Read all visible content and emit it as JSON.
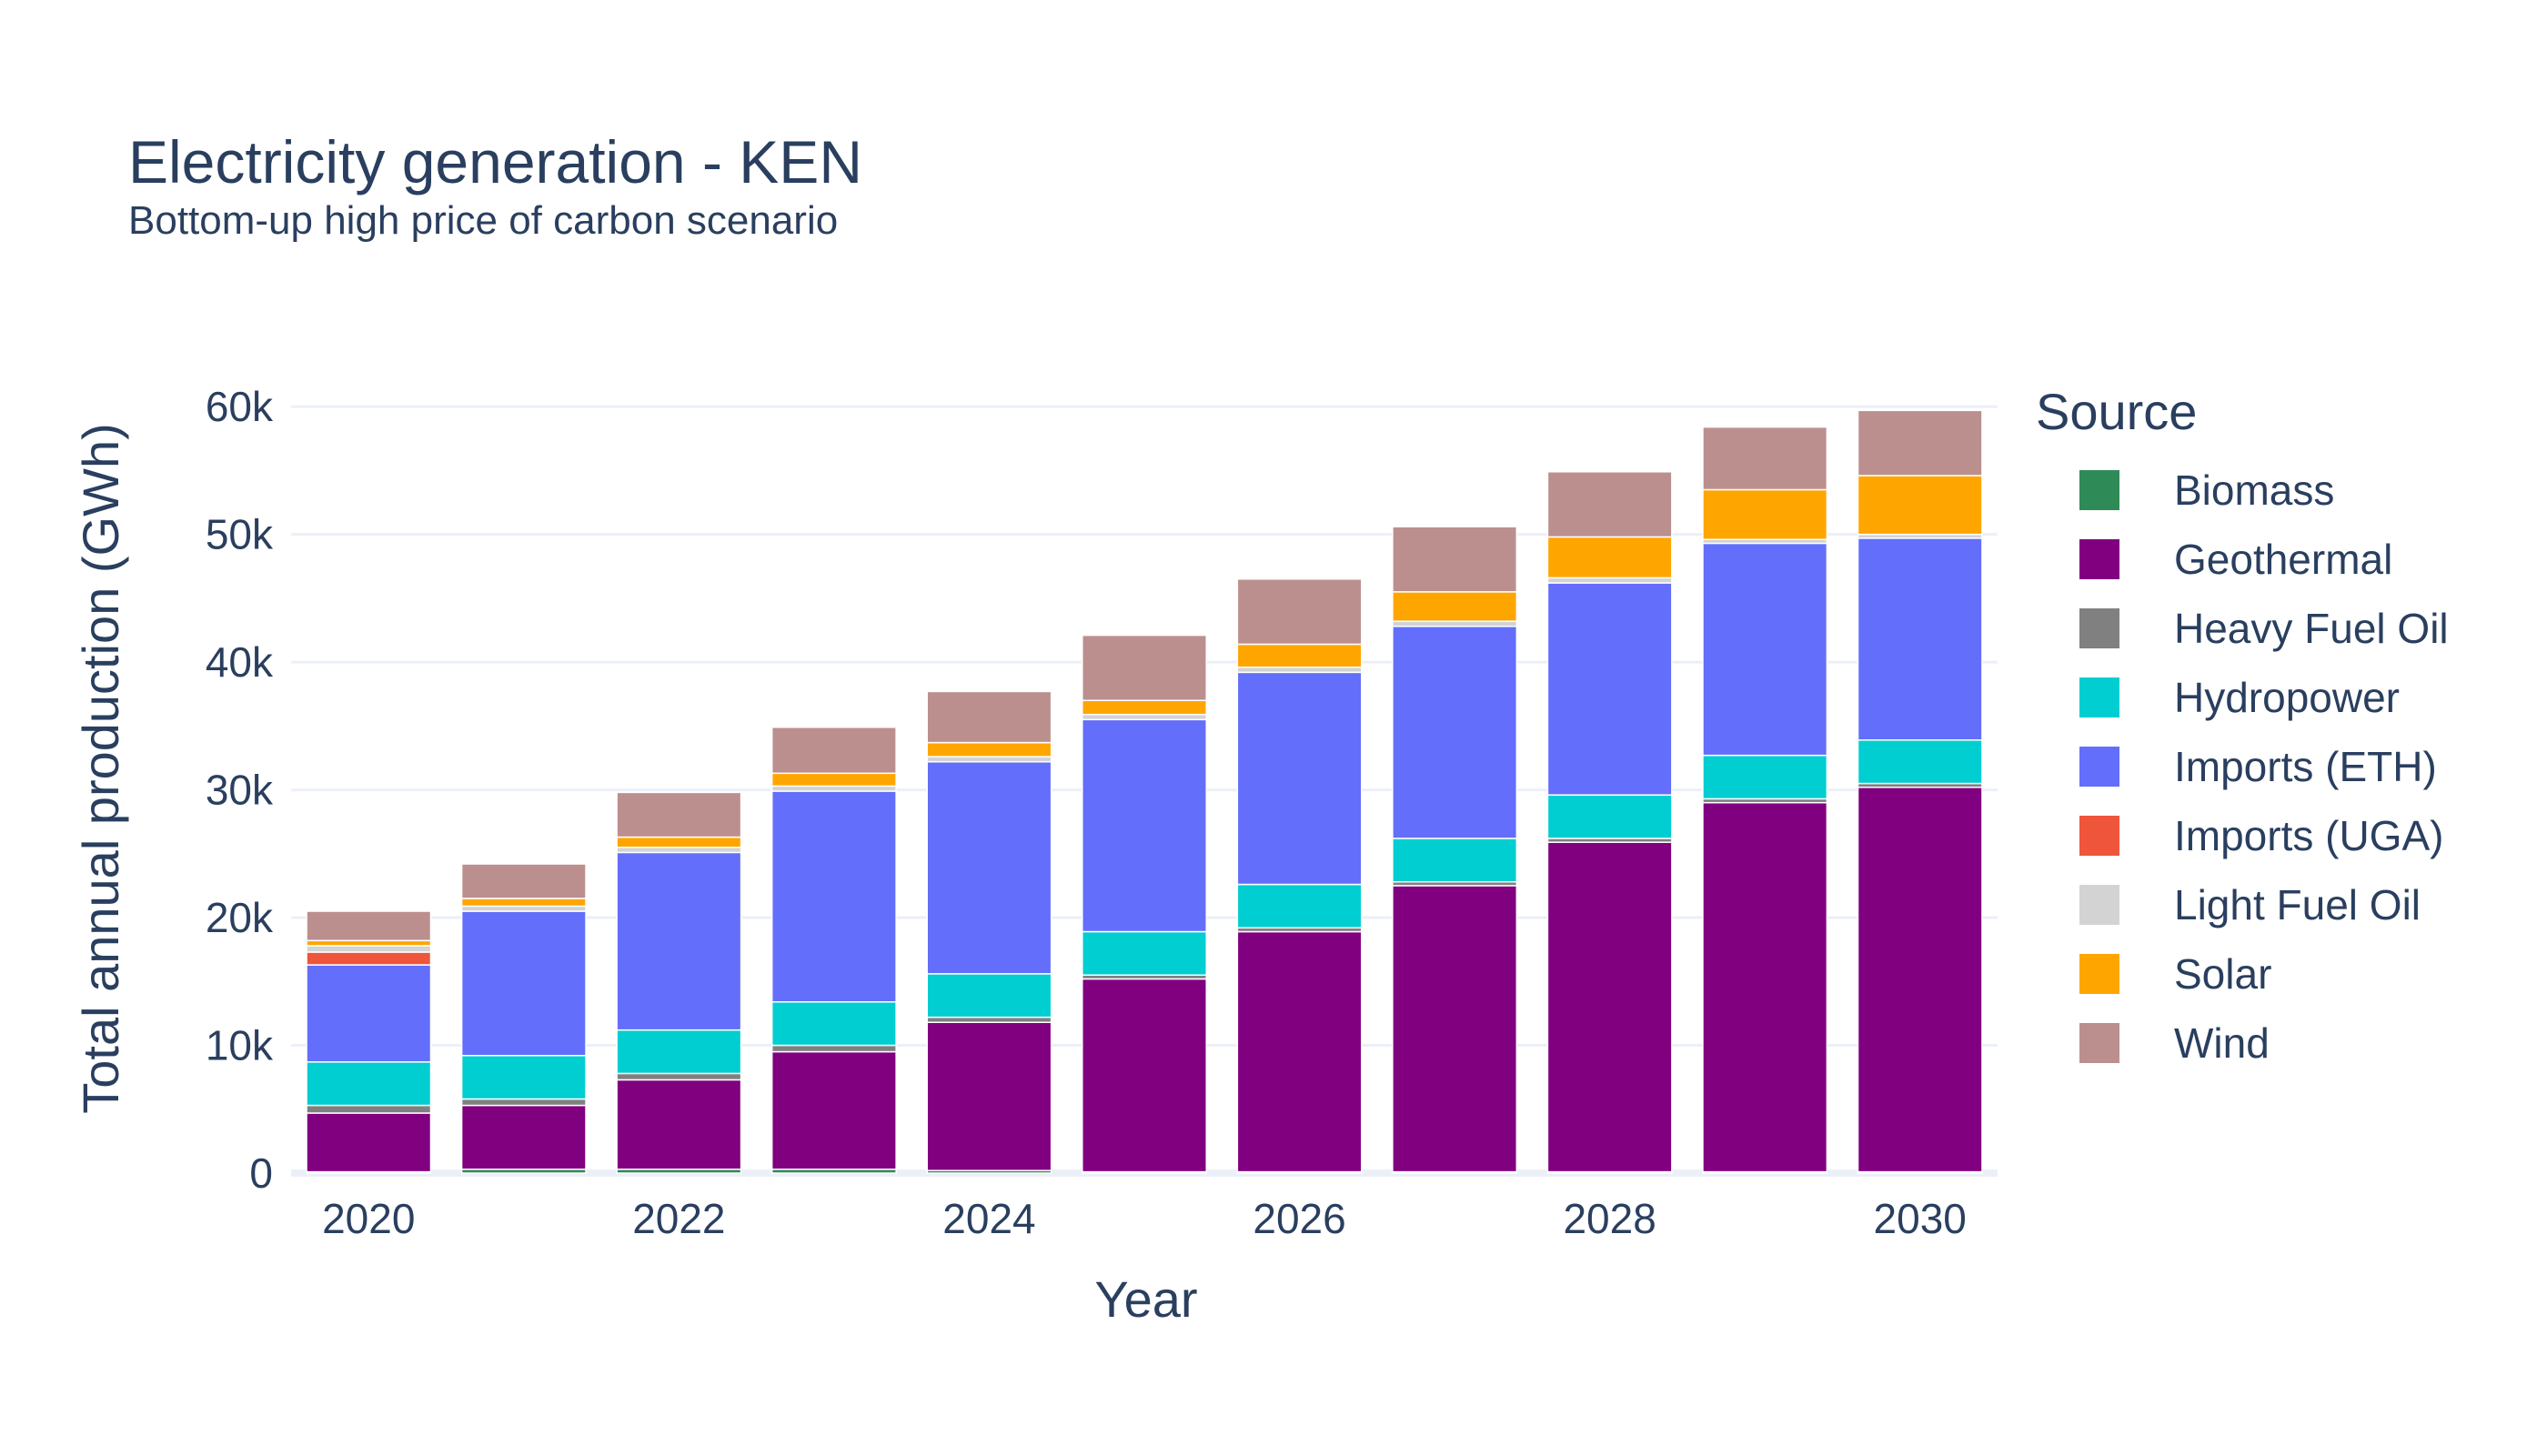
{
  "chart_data": {
    "type": "bar",
    "stacked": true,
    "title": "Electricity generation - KEN",
    "subtitle": "Bottom-up high price of carbon scenario",
    "xlabel": "Year",
    "ylabel": "Total annual production (GWh)",
    "ylim": [
      0,
      63000
    ],
    "yticks": [
      0,
      10000,
      20000,
      30000,
      40000,
      50000,
      60000
    ],
    "ytick_labels": [
      "0",
      "10k",
      "20k",
      "30k",
      "40k",
      "50k",
      "60k"
    ],
    "xticks": [
      2020,
      2022,
      2024,
      2026,
      2028,
      2030
    ],
    "xtick_labels": [
      "2020",
      "2022",
      "2024",
      "2026",
      "2028",
      "2030"
    ],
    "x": [
      2020,
      2021,
      2022,
      2023,
      2024,
      2025,
      2026,
      2027,
      2028,
      2029,
      2030
    ],
    "grid": true,
    "legend_title": "Source",
    "legend_position": "right",
    "series": [
      {
        "name": "Biomass",
        "color": "#2e8b57",
        "values": [
          100,
          300,
          300,
          300,
          200,
          100,
          100,
          100,
          100,
          100,
          100
        ]
      },
      {
        "name": "Geothermal",
        "color": "#800080",
        "values": [
          4600,
          5000,
          7000,
          9200,
          11600,
          15100,
          18800,
          22400,
          25800,
          28900,
          30100
        ]
      },
      {
        "name": "Heavy Fuel Oil",
        "color": "#808080",
        "values": [
          600,
          500,
          500,
          500,
          400,
          300,
          300,
          300,
          300,
          300,
          300
        ]
      },
      {
        "name": "Hydropower",
        "color": "#00ced1",
        "values": [
          3400,
          3400,
          3400,
          3400,
          3400,
          3400,
          3400,
          3400,
          3400,
          3400,
          3400
        ]
      },
      {
        "name": "Imports (ETH)",
        "color": "#636efa",
        "values": [
          7600,
          11300,
          13900,
          16500,
          16600,
          16600,
          16600,
          16600,
          16600,
          16600,
          15800
        ]
      },
      {
        "name": "Imports (UGA)",
        "color": "#ef553b",
        "values": [
          1000,
          0,
          0,
          0,
          0,
          0,
          0,
          0,
          0,
          0,
          0
        ]
      },
      {
        "name": "Light Fuel Oil",
        "color": "#d3d3d3",
        "values": [
          500,
          400,
          400,
          400,
          400,
          400,
          400,
          400,
          400,
          300,
          300
        ]
      },
      {
        "name": "Solar",
        "color": "#ffa500",
        "values": [
          400,
          600,
          800,
          1000,
          1100,
          1100,
          1800,
          2300,
          3200,
          3900,
          4600
        ]
      },
      {
        "name": "Wind",
        "color": "#bc8f8f",
        "values": [
          2300,
          2700,
          3500,
          3600,
          4000,
          5100,
          5100,
          5100,
          5100,
          4900,
          5100
        ]
      }
    ]
  }
}
